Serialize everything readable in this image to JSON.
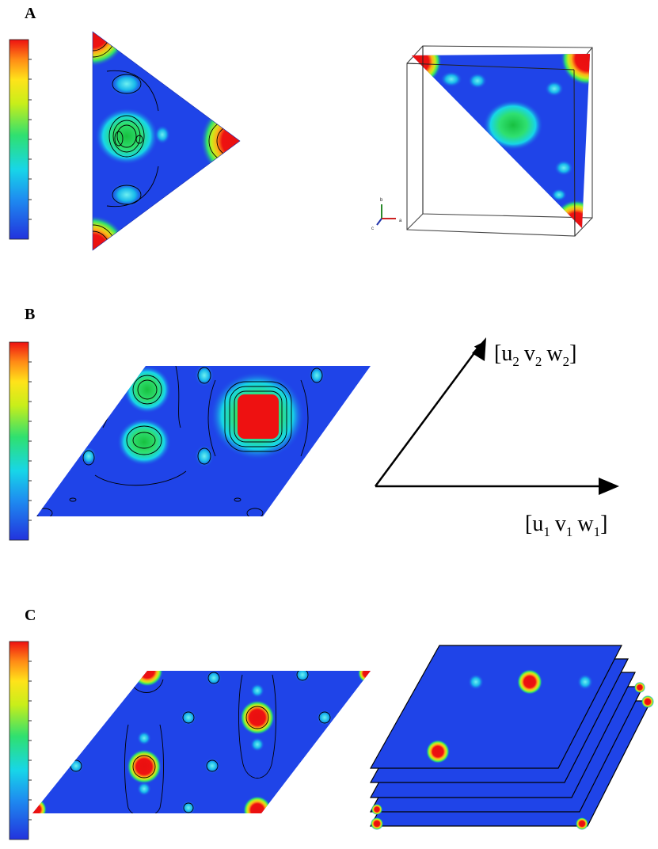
{
  "panels": {
    "a": {
      "label": "A"
    },
    "b": {
      "label": "B"
    },
    "c": {
      "label": "C"
    }
  },
  "vectors": {
    "v1": {
      "open": "[",
      "u": "u",
      "u_sub": "1",
      "v": "v",
      "v_sub": "1",
      "w": "w",
      "w_sub": "1",
      "close": "]"
    },
    "v2": {
      "open": "[",
      "u": "u",
      "u_sub": "2",
      "v": "v",
      "v_sub": "2",
      "w": "w",
      "w_sub": "2",
      "close": "]"
    }
  },
  "axes_triad": {
    "labels": [
      "b",
      "a",
      "c"
    ]
  },
  "colors": {
    "background_field": "#1f44e8",
    "contour_line": "#000000",
    "colorbar": [
      "#2233dd",
      "#1e8cf0",
      "#17d6e8",
      "#2fe070",
      "#c8ee1a",
      "#ffe31a",
      "#ff8b16",
      "#ee1111"
    ]
  }
}
